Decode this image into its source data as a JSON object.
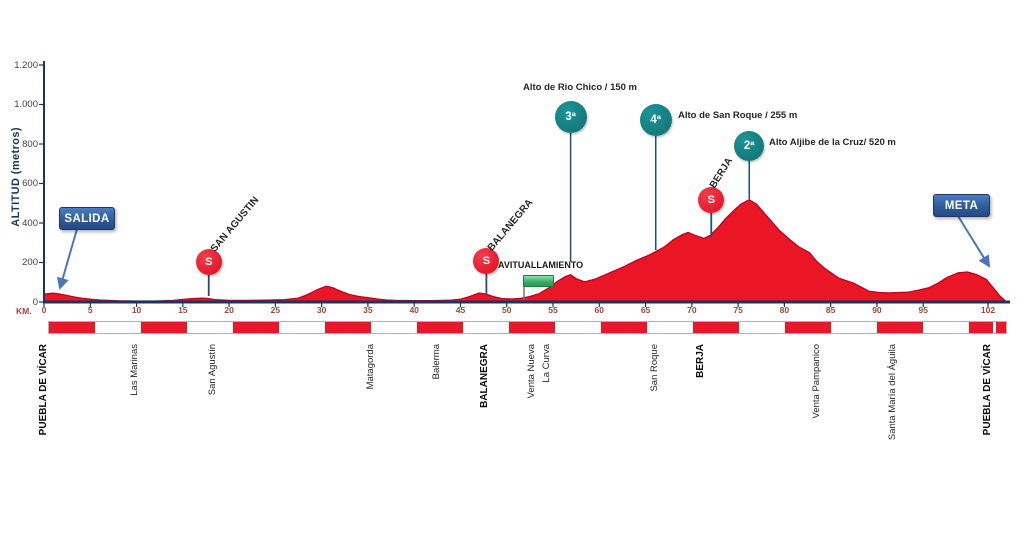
{
  "chart_data": {
    "type": "area",
    "title": "",
    "xlabel": "KM.",
    "ylabel": "ALTITUD (metros)",
    "xlim": [
      0,
      104
    ],
    "ylim": [
      0,
      1200
    ],
    "grid": false,
    "x_ticks": [
      {
        "km": 0,
        "label": "0"
      },
      {
        "km": 5,
        "label": "5"
      },
      {
        "km": 10,
        "label": "10"
      },
      {
        "km": 15,
        "label": "15"
      },
      {
        "km": 20,
        "label": "20"
      },
      {
        "km": 25,
        "label": "25"
      },
      {
        "km": 30,
        "label": "30"
      },
      {
        "km": 35,
        "label": "35"
      },
      {
        "km": 40,
        "label": "40"
      },
      {
        "km": 45,
        "label": "45"
      },
      {
        "km": 50,
        "label": "50"
      },
      {
        "km": 55,
        "label": "55"
      },
      {
        "km": 60,
        "label": "60"
      },
      {
        "km": 65,
        "label": "65"
      },
      {
        "km": 70,
        "label": "70"
      },
      {
        "km": 75,
        "label": "75"
      },
      {
        "km": 80,
        "label": "80"
      },
      {
        "km": 85,
        "label": "85"
      },
      {
        "km": 90,
        "label": "90"
      },
      {
        "km": 95,
        "label": "95"
      },
      {
        "km": 102,
        "label": "102"
      }
    ],
    "y_ticks": [
      {
        "m": 0,
        "label": "0"
      },
      {
        "m": 200,
        "label": "200"
      },
      {
        "m": 400,
        "label": "400"
      },
      {
        "m": 600,
        "label": "600"
      },
      {
        "m": 800,
        "label": "800"
      },
      {
        "m": 1000,
        "label": "1.000"
      },
      {
        "m": 1200,
        "label": "1.200"
      }
    ],
    "profile": [
      [
        0,
        40
      ],
      [
        1,
        45
      ],
      [
        2,
        38
      ],
      [
        3,
        28
      ],
      [
        4,
        20
      ],
      [
        5,
        14
      ],
      [
        6,
        10
      ],
      [
        8,
        6
      ],
      [
        10,
        5
      ],
      [
        12,
        5
      ],
      [
        14,
        8
      ],
      [
        15,
        13
      ],
      [
        16,
        17
      ],
      [
        17,
        20
      ],
      [
        17.6,
        18
      ],
      [
        18.5,
        12
      ],
      [
        20,
        8
      ],
      [
        22,
        8
      ],
      [
        24,
        9
      ],
      [
        26,
        12
      ],
      [
        27.5,
        20
      ],
      [
        28.5,
        38
      ],
      [
        29.5,
        62
      ],
      [
        30.5,
        80
      ],
      [
        31.2,
        72
      ],
      [
        32,
        55
      ],
      [
        33,
        38
      ],
      [
        34,
        28
      ],
      [
        35,
        22
      ],
      [
        36,
        15
      ],
      [
        37,
        10
      ],
      [
        38,
        8
      ],
      [
        40,
        7
      ],
      [
        42,
        7
      ],
      [
        44,
        9
      ],
      [
        45,
        14
      ],
      [
        46,
        28
      ],
      [
        47,
        45
      ],
      [
        47.8,
        40
      ],
      [
        48.5,
        28
      ],
      [
        49.5,
        17
      ],
      [
        50.5,
        15
      ],
      [
        51.5,
        18
      ],
      [
        52.5,
        28
      ],
      [
        53.5,
        42
      ],
      [
        54.5,
        70
      ],
      [
        55.5,
        105
      ],
      [
        56.3,
        128
      ],
      [
        56.9,
        138
      ],
      [
        57.5,
        118
      ],
      [
        58.4,
        102
      ],
      [
        59.5,
        115
      ],
      [
        61,
        145
      ],
      [
        62.5,
        175
      ],
      [
        64,
        210
      ],
      [
        65.5,
        240
      ],
      [
        66.1,
        255
      ],
      [
        67,
        278
      ],
      [
        68,
        315
      ],
      [
        69,
        342
      ],
      [
        69.6,
        352
      ],
      [
        70.3,
        338
      ],
      [
        71.3,
        322
      ],
      [
        72,
        338
      ],
      [
        72.8,
        375
      ],
      [
        73.6,
        420
      ],
      [
        74.5,
        462
      ],
      [
        75.3,
        495
      ],
      [
        76.2,
        518
      ],
      [
        77,
        495
      ],
      [
        78,
        440
      ],
      [
        79.5,
        360
      ],
      [
        80.6,
        315
      ],
      [
        81.6,
        278
      ],
      [
        82.7,
        250
      ],
      [
        83.5,
        205
      ],
      [
        84.3,
        172
      ],
      [
        85.9,
        120
      ],
      [
        87.5,
        95
      ],
      [
        89.1,
        55
      ],
      [
        90.2,
        48
      ],
      [
        91.3,
        46
      ],
      [
        93.4,
        50
      ],
      [
        94.5,
        60
      ],
      [
        95.6,
        72
      ],
      [
        96.6,
        95
      ],
      [
        97.6,
        125
      ],
      [
        98.8,
        148
      ],
      [
        99.8,
        152
      ],
      [
        100.8,
        138
      ],
      [
        101.8,
        115
      ],
      [
        102.5,
        76
      ],
      [
        103.3,
        30
      ],
      [
        104,
        0
      ]
    ],
    "start": {
      "label": "SALIDA",
      "km": 0
    },
    "finish": {
      "label": "META",
      "km": 102
    },
    "feed_zone": {
      "label": "AVITUALLAMIENTO",
      "km": 51.8
    },
    "sprints": [
      {
        "symbol": "S",
        "name": "SAN AGUSTIN",
        "km": 17.8
      },
      {
        "symbol": "S",
        "name": "BALANEGRA",
        "km": 47.8
      },
      {
        "symbol": "S",
        "name": "BERJA",
        "km": 72.1
      }
    ],
    "climbs": [
      {
        "category": "3ª",
        "name": "Alto de Rio Chico / 150 m",
        "km": 56.9,
        "altitude_m": 150
      },
      {
        "category": "4ª",
        "name": "Alto de San Roque / 255 m",
        "km": 66.1,
        "altitude_m": 255
      },
      {
        "category": "2ª",
        "name": "Alto Aljibe de la Cruz/ 520 m",
        "km": 76.2,
        "altitude_m": 520
      }
    ],
    "towns": [
      {
        "name": "PUEBLA DE VÍCAR",
        "km": 0,
        "bold": true
      },
      {
        "name": "Las Marinas",
        "km": 9.8,
        "bold": false
      },
      {
        "name": "San Agustín",
        "km": 18.3,
        "bold": false
      },
      {
        "name": "Matagorda",
        "km": 35.3,
        "bold": false
      },
      {
        "name": "Balerma",
        "km": 42.5,
        "bold": false
      },
      {
        "name": "BALANEGRA",
        "km": 47.6,
        "bold": true
      },
      {
        "name": "Venta Nueva",
        "km": 52.7,
        "bold": false
      },
      {
        "name": "La Curva",
        "km": 54.4,
        "bold": false
      },
      {
        "name": "San Roque",
        "km": 66,
        "bold": false
      },
      {
        "name": "BERJA",
        "km": 71,
        "bold": true
      },
      {
        "name": "Venta Pampanico",
        "km": 83.5,
        "bold": false
      },
      {
        "name": "Santa María del Águila",
        "km": 91.7,
        "bold": false
      },
      {
        "name": "PUEBLA DE VÍCAR",
        "km": 102,
        "bold": true
      }
    ],
    "km_bar": {
      "red_segments": [
        [
          0,
          5
        ],
        [
          10,
          15
        ],
        [
          20,
          25
        ],
        [
          30,
          35
        ],
        [
          40,
          45
        ],
        [
          50,
          55
        ],
        [
          60,
          65
        ],
        [
          70,
          75
        ],
        [
          80,
          85
        ],
        [
          90,
          95
        ],
        [
          100,
          102.6
        ],
        [
          102.9,
          104
        ]
      ]
    },
    "colors": {
      "profile_red": "#EA1525",
      "profile_edge": "#C00021",
      "teal": "#147A7C",
      "navy_axis": "#17375E",
      "drop_line": "#1F4E79",
      "xtick_red": "#A3433C",
      "box_blue": "#2E5C9C",
      "arrow_blue": "#4a76b8",
      "flag_green": "#37AC63"
    }
  }
}
